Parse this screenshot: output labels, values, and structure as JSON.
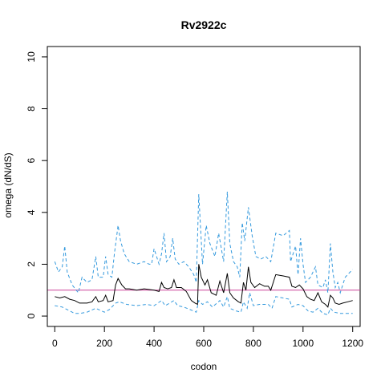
{
  "chart_data": {
    "type": "line",
    "title": "Rv2922c",
    "xlabel": "codon",
    "ylabel": "omega (dN/dS)",
    "xlim": [
      -30,
      1230
    ],
    "ylim": [
      -0.4,
      10.4
    ],
    "x_ticks": [
      0,
      200,
      400,
      600,
      800,
      1000,
      1200
    ],
    "y_ticks": [
      0,
      2,
      4,
      6,
      8,
      10
    ],
    "x_tick_labels": [
      "0",
      "200",
      "400",
      "600",
      "800",
      "1000",
      "1200"
    ],
    "y_tick_labels": [
      "0",
      "2",
      "4",
      "6",
      "8",
      "10"
    ],
    "reference_line": {
      "y": 1,
      "color": "#cc4499"
    },
    "grid": false,
    "series": [
      {
        "role": "upper",
        "color": "#3399dd",
        "style": "dashed",
        "points": [
          [
            0,
            2.1
          ],
          [
            15,
            1.7
          ],
          [
            30,
            1.9
          ],
          [
            40,
            2.7
          ],
          [
            50,
            1.7
          ],
          [
            70,
            1.2
          ],
          [
            95,
            0.9
          ],
          [
            110,
            1.5
          ],
          [
            130,
            1.3
          ],
          [
            150,
            1.4
          ],
          [
            165,
            2.3
          ],
          [
            175,
            1.5
          ],
          [
            195,
            1.5
          ],
          [
            205,
            2.3
          ],
          [
            215,
            1.6
          ],
          [
            230,
            1.5
          ],
          [
            240,
            2.4
          ],
          [
            255,
            3.5
          ],
          [
            265,
            2.9
          ],
          [
            280,
            2.4
          ],
          [
            300,
            2.1
          ],
          [
            330,
            2.0
          ],
          [
            360,
            2.1
          ],
          [
            380,
            2.0
          ],
          [
            390,
            2.0
          ],
          [
            400,
            2.6
          ],
          [
            420,
            2.0
          ],
          [
            430,
            2.4
          ],
          [
            440,
            3.2
          ],
          [
            450,
            2.1
          ],
          [
            465,
            2.3
          ],
          [
            475,
            3.0
          ],
          [
            485,
            2.2
          ],
          [
            500,
            2.0
          ],
          [
            520,
            2.1
          ],
          [
            540,
            1.9
          ],
          [
            560,
            1.6
          ],
          [
            570,
            1.3
          ],
          [
            580,
            4.7
          ],
          [
            595,
            2.0
          ],
          [
            610,
            3.5
          ],
          [
            625,
            2.8
          ],
          [
            645,
            2.3
          ],
          [
            660,
            3.2
          ],
          [
            680,
            2.1
          ],
          [
            695,
            4.8
          ],
          [
            705,
            2.8
          ],
          [
            720,
            2.1
          ],
          [
            735,
            1.9
          ],
          [
            745,
            1.5
          ],
          [
            755,
            3.6
          ],
          [
            765,
            2.9
          ],
          [
            780,
            4.2
          ],
          [
            795,
            3.1
          ],
          [
            810,
            2.3
          ],
          [
            830,
            2.2
          ],
          [
            850,
            2.3
          ],
          [
            870,
            2.1
          ],
          [
            890,
            3.2
          ],
          [
            920,
            3.1
          ],
          [
            945,
            3.3
          ],
          [
            950,
            2.1
          ],
          [
            970,
            2.7
          ],
          [
            980,
            1.6
          ],
          [
            990,
            3.0
          ],
          [
            1000,
            2.0
          ],
          [
            1010,
            1.3
          ],
          [
            1030,
            1.5
          ],
          [
            1050,
            1.9
          ],
          [
            1060,
            1.2
          ],
          [
            1080,
            1.1
          ],
          [
            1090,
            1.4
          ],
          [
            1100,
            0.9
          ],
          [
            1110,
            2.8
          ],
          [
            1120,
            1.7
          ],
          [
            1130,
            1.1
          ],
          [
            1140,
            1.3
          ],
          [
            1150,
            0.9
          ],
          [
            1160,
            1.2
          ],
          [
            1170,
            1.5
          ],
          [
            1180,
            1.6
          ],
          [
            1190,
            1.7
          ],
          [
            1200,
            1.8
          ]
        ]
      },
      {
        "role": "estimate",
        "color": "#000000",
        "style": "solid",
        "points": [
          [
            0,
            0.75
          ],
          [
            20,
            0.7
          ],
          [
            40,
            0.75
          ],
          [
            60,
            0.65
          ],
          [
            80,
            0.6
          ],
          [
            100,
            0.5
          ],
          [
            130,
            0.5
          ],
          [
            150,
            0.55
          ],
          [
            165,
            0.75
          ],
          [
            175,
            0.55
          ],
          [
            195,
            0.6
          ],
          [
            205,
            0.8
          ],
          [
            215,
            0.55
          ],
          [
            235,
            0.6
          ],
          [
            245,
            1.2
          ],
          [
            255,
            1.45
          ],
          [
            270,
            1.2
          ],
          [
            285,
            1.05
          ],
          [
            300,
            1.05
          ],
          [
            330,
            1.0
          ],
          [
            360,
            1.05
          ],
          [
            400,
            1.0
          ],
          [
            420,
            0.95
          ],
          [
            430,
            1.3
          ],
          [
            440,
            1.1
          ],
          [
            455,
            1.05
          ],
          [
            470,
            1.1
          ],
          [
            480,
            1.4
          ],
          [
            490,
            1.1
          ],
          [
            510,
            1.1
          ],
          [
            530,
            0.95
          ],
          [
            550,
            0.6
          ],
          [
            565,
            0.5
          ],
          [
            575,
            0.45
          ],
          [
            580,
            2.0
          ],
          [
            590,
            1.5
          ],
          [
            605,
            1.2
          ],
          [
            615,
            1.4
          ],
          [
            630,
            0.9
          ],
          [
            650,
            0.8
          ],
          [
            665,
            1.35
          ],
          [
            680,
            0.9
          ],
          [
            695,
            1.65
          ],
          [
            705,
            0.9
          ],
          [
            720,
            0.7
          ],
          [
            740,
            0.55
          ],
          [
            750,
            0.5
          ],
          [
            760,
            1.3
          ],
          [
            770,
            1.0
          ],
          [
            780,
            1.9
          ],
          [
            790,
            1.3
          ],
          [
            805,
            1.1
          ],
          [
            825,
            1.25
          ],
          [
            845,
            1.15
          ],
          [
            860,
            1.15
          ],
          [
            870,
            1.0
          ],
          [
            890,
            1.6
          ],
          [
            920,
            1.55
          ],
          [
            945,
            1.5
          ],
          [
            955,
            1.15
          ],
          [
            970,
            1.1
          ],
          [
            985,
            1.2
          ],
          [
            1000,
            1.05
          ],
          [
            1015,
            0.75
          ],
          [
            1030,
            0.65
          ],
          [
            1045,
            0.6
          ],
          [
            1060,
            0.9
          ],
          [
            1075,
            0.55
          ],
          [
            1090,
            0.45
          ],
          [
            1100,
            0.35
          ],
          [
            1110,
            0.8
          ],
          [
            1120,
            0.7
          ],
          [
            1130,
            0.5
          ],
          [
            1145,
            0.45
          ],
          [
            1160,
            0.5
          ],
          [
            1180,
            0.55
          ],
          [
            1200,
            0.6
          ]
        ]
      },
      {
        "role": "lower",
        "color": "#3399dd",
        "style": "dashed",
        "points": [
          [
            0,
            0.4
          ],
          [
            30,
            0.35
          ],
          [
            60,
            0.2
          ],
          [
            80,
            0.1
          ],
          [
            100,
            0.1
          ],
          [
            130,
            0.15
          ],
          [
            165,
            0.3
          ],
          [
            200,
            0.15
          ],
          [
            220,
            0.25
          ],
          [
            245,
            0.5
          ],
          [
            260,
            0.55
          ],
          [
            290,
            0.45
          ],
          [
            330,
            0.4
          ],
          [
            370,
            0.45
          ],
          [
            400,
            0.4
          ],
          [
            430,
            0.6
          ],
          [
            445,
            0.4
          ],
          [
            480,
            0.6
          ],
          [
            495,
            0.4
          ],
          [
            520,
            0.35
          ],
          [
            545,
            0.25
          ],
          [
            570,
            0.15
          ],
          [
            580,
            0.6
          ],
          [
            595,
            0.45
          ],
          [
            615,
            0.55
          ],
          [
            635,
            0.35
          ],
          [
            665,
            0.6
          ],
          [
            680,
            0.35
          ],
          [
            695,
            0.75
          ],
          [
            705,
            0.3
          ],
          [
            730,
            0.2
          ],
          [
            750,
            0.15
          ],
          [
            760,
            0.55
          ],
          [
            775,
            0.3
          ],
          [
            785,
            0.9
          ],
          [
            800,
            0.4
          ],
          [
            825,
            0.45
          ],
          [
            860,
            0.45
          ],
          [
            875,
            0.3
          ],
          [
            890,
            0.75
          ],
          [
            920,
            0.7
          ],
          [
            945,
            0.65
          ],
          [
            955,
            0.35
          ],
          [
            980,
            0.45
          ],
          [
            1000,
            0.4
          ],
          [
            1020,
            0.2
          ],
          [
            1040,
            0.15
          ],
          [
            1060,
            0.3
          ],
          [
            1080,
            0.1
          ],
          [
            1100,
            0.05
          ],
          [
            1110,
            0.3
          ],
          [
            1125,
            0.15
          ],
          [
            1150,
            0.1
          ],
          [
            1180,
            0.1
          ],
          [
            1200,
            0.1
          ]
        ]
      }
    ]
  }
}
